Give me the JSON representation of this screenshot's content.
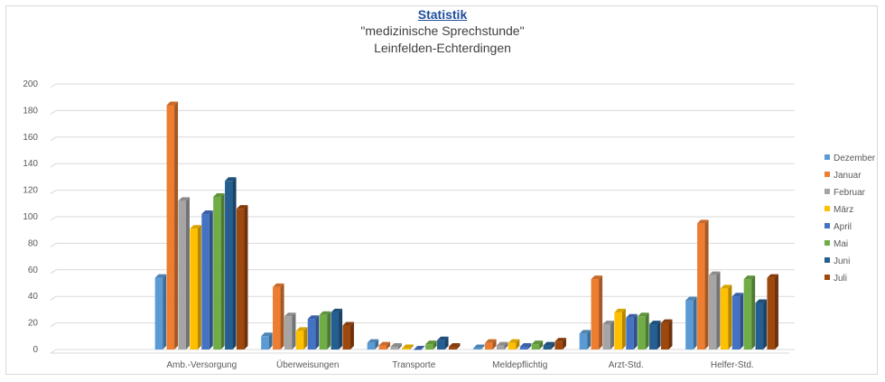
{
  "chart_data": {
    "type": "bar",
    "title": "Statistik",
    "subtitle": "\"medizinische  Sprechstunde\"",
    "subtitle2": "Leinfelden-Echterdingen",
    "categories": [
      "Amb.-Versorgung",
      "Überweisungen",
      "Transporte",
      "Meldepflichtig",
      "Arzt-Std.",
      "Helfer-Std."
    ],
    "yticks": [
      "0",
      "20",
      "40",
      "60",
      "80",
      "100",
      "120",
      "140",
      "160",
      "180",
      "200"
    ],
    "ylim": [
      0,
      200
    ],
    "grid": true,
    "legend_position": "right",
    "series": [
      {
        "name": "Dezember",
        "color": "#5b9bd5",
        "values": [
          54,
          10,
          5,
          1,
          12,
          37
        ]
      },
      {
        "name": "Januar",
        "color": "#ed7d31",
        "values": [
          184,
          47,
          3,
          5,
          53,
          95
        ]
      },
      {
        "name": "Februar",
        "color": "#a5a5a5",
        "values": [
          112,
          25,
          2,
          3,
          19,
          56
        ]
      },
      {
        "name": "März",
        "color": "#ffc000",
        "values": [
          91,
          14,
          1,
          5,
          28,
          46
        ]
      },
      {
        "name": "April",
        "color": "#4472c4",
        "values": [
          102,
          23,
          0,
          2,
          24,
          40
        ]
      },
      {
        "name": "Mai",
        "color": "#70ad47",
        "values": [
          115,
          26,
          4,
          4,
          25,
          53
        ]
      },
      {
        "name": "Juni",
        "color": "#255e91",
        "values": [
          127,
          28,
          7,
          3,
          19,
          35
        ]
      },
      {
        "name": "Juli",
        "color": "#9e480e",
        "values": [
          106,
          18,
          2,
          6,
          20,
          54
        ]
      }
    ]
  }
}
